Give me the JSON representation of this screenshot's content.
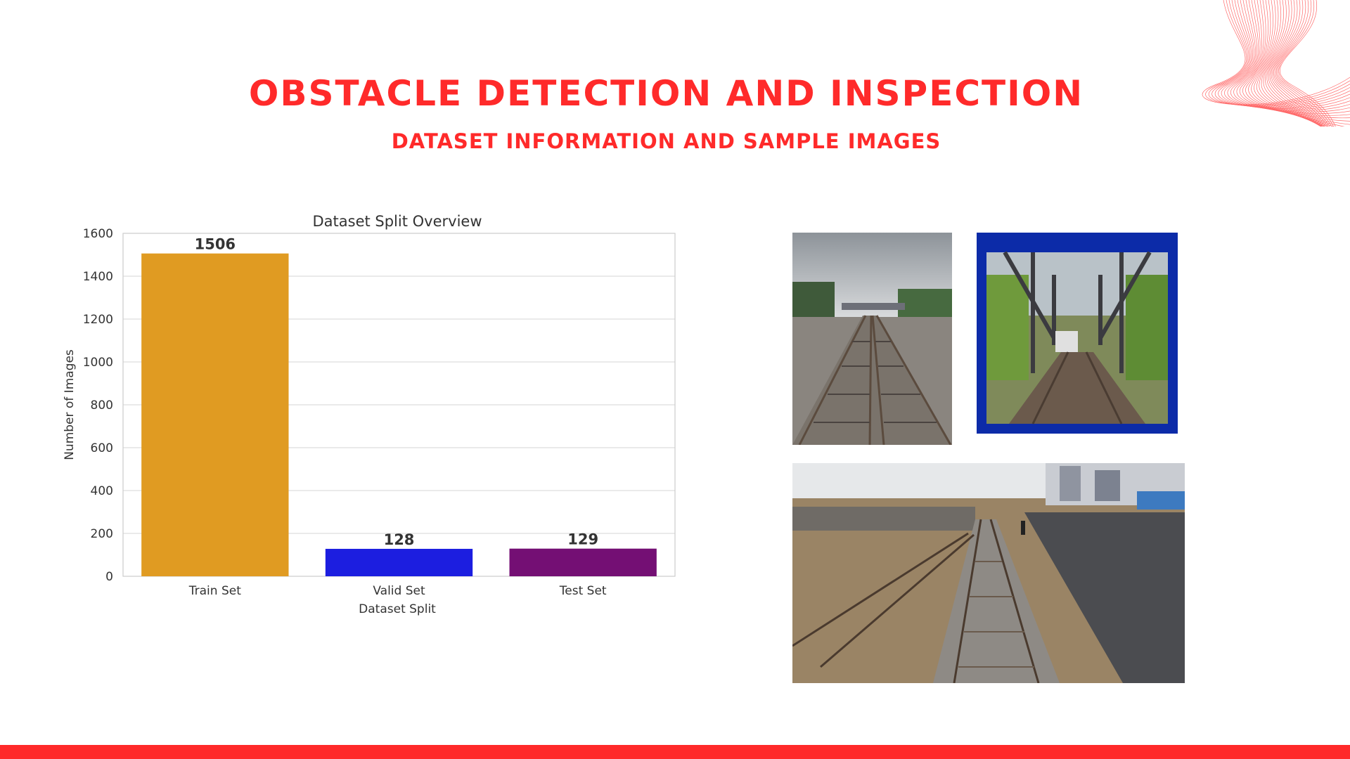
{
  "colors": {
    "accent": "#ff2a2a"
  },
  "header": {
    "title": "OBSTACLE DETECTION AND INSPECTION",
    "subtitle": "DATASET INFORMATION AND SAMPLE IMAGES"
  },
  "chart_data": {
    "type": "bar",
    "title": "Dataset Split Overview",
    "xlabel": "Dataset Split",
    "ylabel": "Number of Images",
    "categories": [
      "Train Set",
      "Valid Set",
      "Test Set"
    ],
    "values": [
      1506,
      128,
      129
    ],
    "data_labels": [
      "1506",
      "128",
      "129"
    ],
    "colors": [
      "#e09b22",
      "#1c1ee0",
      "#740f74"
    ],
    "ylim": [
      0,
      1600
    ],
    "yticks": [
      0,
      200,
      400,
      600,
      800,
      1000,
      1200,
      1400,
      1600
    ],
    "grid": true
  },
  "images": [
    {
      "name": "railway-tracks-image"
    },
    {
      "name": "railway-bridge-image"
    },
    {
      "name": "railway-junction-image"
    }
  ]
}
